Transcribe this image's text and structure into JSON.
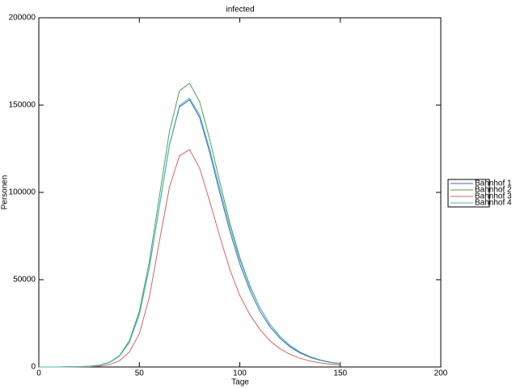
{
  "chart_data": {
    "type": "line",
    "title": "infected",
    "x_label": "Tage",
    "y_label": "Personen",
    "x": [
      0,
      5,
      10,
      15,
      20,
      25,
      30,
      35,
      40,
      45,
      50,
      55,
      60,
      65,
      70,
      75,
      80,
      85,
      90,
      95,
      100,
      105,
      110,
      115,
      120,
      125,
      130,
      135,
      140,
      145,
      150
    ],
    "series": [
      {
        "name": "Bahnhof 1",
        "color": "#3f5fd0",
        "values": [
          0,
          0,
          0,
          100,
          200,
          400,
          1000,
          2500,
          6000,
          14000,
          30000,
          57000,
          92000,
          127000,
          149000,
          153000,
          143000,
          123000,
          100000,
          78000,
          59000,
          44000,
          32000,
          23000,
          16500,
          11500,
          8000,
          5500,
          3800,
          2600,
          1800
        ]
      },
      {
        "name": "Bahnhof 2",
        "color": "#4fa34f",
        "values": [
          0,
          0,
          0,
          106,
          212,
          425,
          1060,
          2650,
          6370,
          14900,
          31900,
          60500,
          97700,
          134900,
          158200,
          162500,
          152000,
          130600,
          106200,
          82800,
          62700,
          46700,
          34000,
          24400,
          17500,
          12200,
          8500,
          5800,
          4000,
          2800,
          1900
        ]
      },
      {
        "name": "Bahnhof 3",
        "color": "#e06060",
        "values": [
          0,
          0,
          0,
          50,
          100,
          200,
          500,
          1300,
          3500,
          8500,
          19000,
          40000,
          72000,
          103000,
          121000,
          124500,
          114000,
          95000,
          75000,
          56000,
          41000,
          30000,
          21500,
          15000,
          10500,
          7200,
          5000,
          3400,
          2300,
          1600,
          1100
        ]
      },
      {
        "name": "Bahnhof 4",
        "color": "#3fbfbf",
        "values": [
          0,
          0,
          0,
          100,
          200,
          400,
          1000,
          2500,
          6000,
          14000,
          30000,
          57000,
          92000,
          127500,
          149800,
          154000,
          144500,
          125000,
          102500,
          80500,
          61500,
          46000,
          34000,
          24500,
          17500,
          12300,
          8600,
          6000,
          4100,
          2800,
          2000
        ]
      }
    ],
    "xlim": [
      0,
      200
    ],
    "xticks": [
      0,
      50,
      100,
      150,
      200
    ],
    "ylim": [
      0,
      200000
    ],
    "yticks": [
      0,
      50000,
      100000,
      150000,
      200000
    ],
    "legend": "right"
  }
}
